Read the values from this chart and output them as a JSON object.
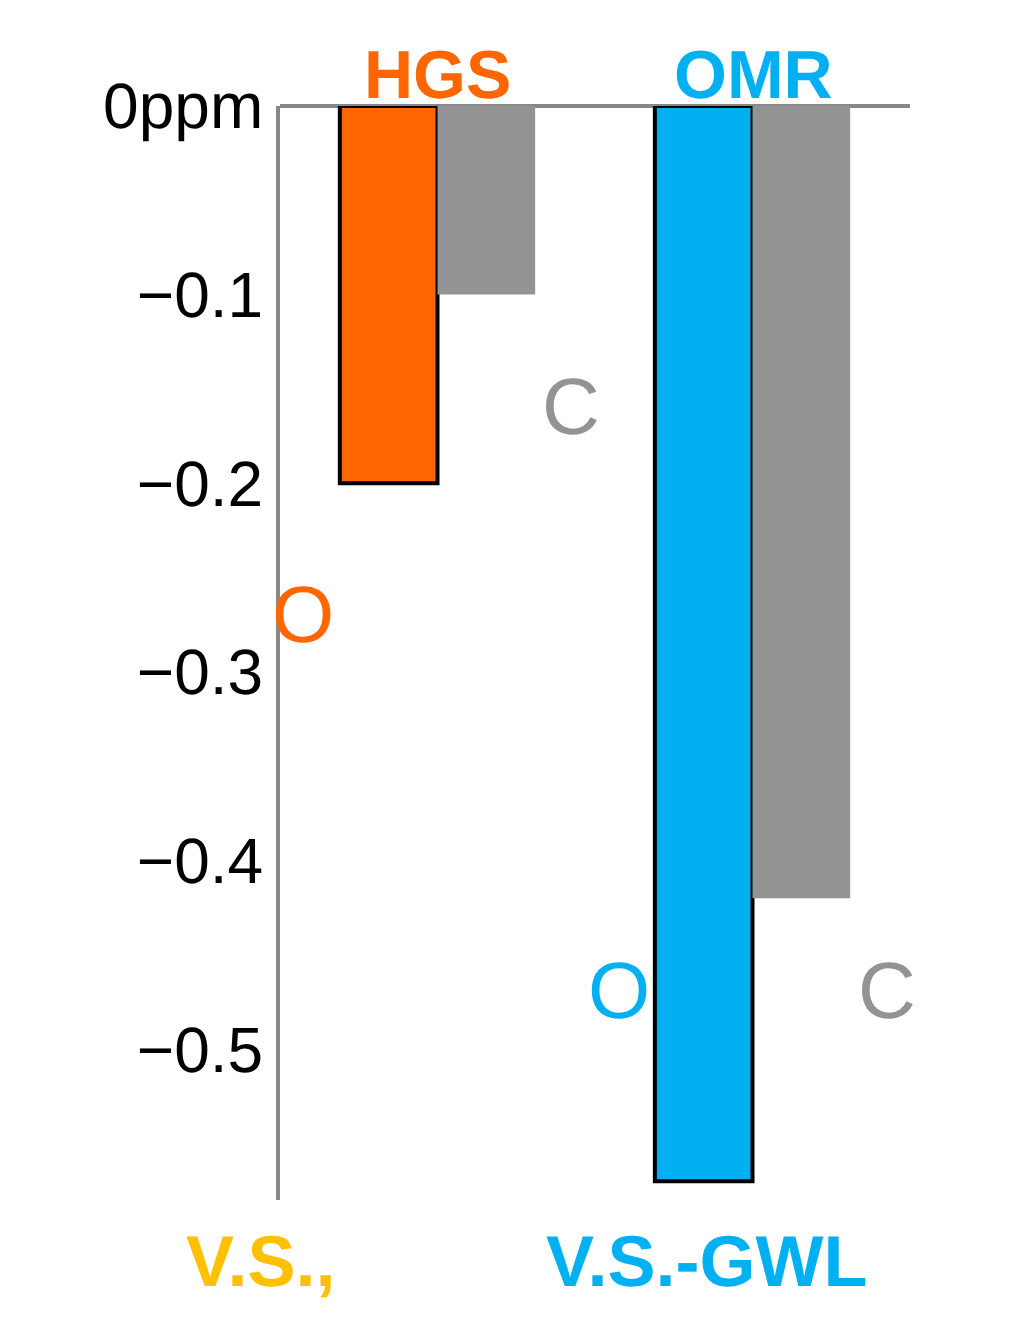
{
  "chart_data": {
    "type": "bar",
    "categories": [
      "HGS",
      "OMR"
    ],
    "series": [
      {
        "name": "O",
        "colors": [
          "#ff6600",
          "#00b0f0"
        ],
        "values": [
          -0.2,
          -0.57
        ]
      },
      {
        "name": "C",
        "color": "#939393",
        "values": [
          -0.1,
          -0.42
        ]
      }
    ],
    "ylim": [
      -0.58,
      0
    ],
    "yticks": [
      {
        "value": 0,
        "label": "0ppm"
      },
      {
        "value": -0.1,
        "label": "−0.1"
      },
      {
        "value": -0.2,
        "label": "−0.2"
      },
      {
        "value": -0.3,
        "label": "−0.3"
      },
      {
        "value": -0.4,
        "label": "−0.4"
      },
      {
        "value": -0.5,
        "label": "−0.5"
      }
    ],
    "legend": false,
    "annotations": [
      "V.S.,",
      "V.S.-GWL"
    ]
  }
}
